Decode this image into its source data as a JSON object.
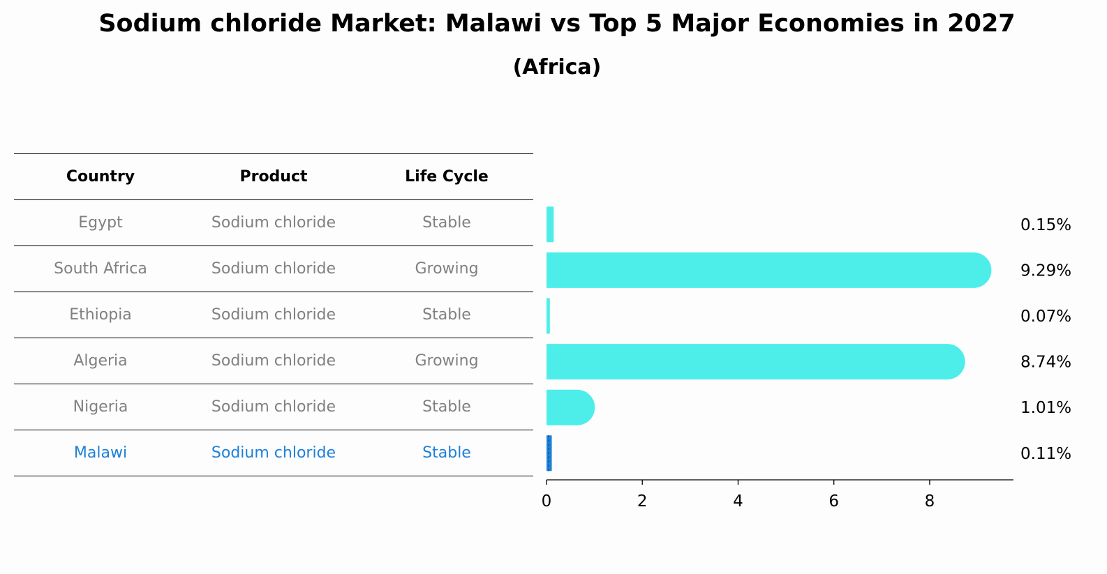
{
  "title": "Sodium chloride Market: Malawi vs Top 5 Major Economies in 2027",
  "subtitle": "(Africa)",
  "table": {
    "headers": [
      "Country",
      "Product",
      "Life Cycle"
    ],
    "rows": [
      {
        "country": "Egypt",
        "product": "Sodium chloride",
        "life_cycle": "Stable"
      },
      {
        "country": "South Africa",
        "product": "Sodium chloride",
        "life_cycle": "Growing"
      },
      {
        "country": "Ethiopia",
        "product": "Sodium chloride",
        "life_cycle": "Stable"
      },
      {
        "country": "Algeria",
        "product": "Sodium chloride",
        "life_cycle": "Growing"
      },
      {
        "country": "Nigeria",
        "product": "Sodium chloride",
        "life_cycle": "Stable"
      },
      {
        "country": "Malawi",
        "product": "Sodium chloride",
        "life_cycle": "Stable"
      }
    ]
  },
  "colors": {
    "bar": "#4deeea",
    "highlight": "#1e80d8",
    "muted_text": "#808080"
  },
  "chart_data": {
    "type": "bar",
    "orientation": "horizontal",
    "categories": [
      "Egypt",
      "South Africa",
      "Ethiopia",
      "Algeria",
      "Nigeria",
      "Malawi"
    ],
    "values": [
      0.15,
      9.29,
      0.07,
      8.74,
      1.01,
      0.11
    ],
    "value_labels": [
      "0.15%",
      "9.29%",
      "0.07%",
      "8.74%",
      "1.01%",
      "0.11%"
    ],
    "highlight_category": "Malawi",
    "xticks": [
      0,
      2,
      4,
      6,
      8
    ],
    "xlim": [
      0,
      9.75
    ],
    "grid": false
  }
}
